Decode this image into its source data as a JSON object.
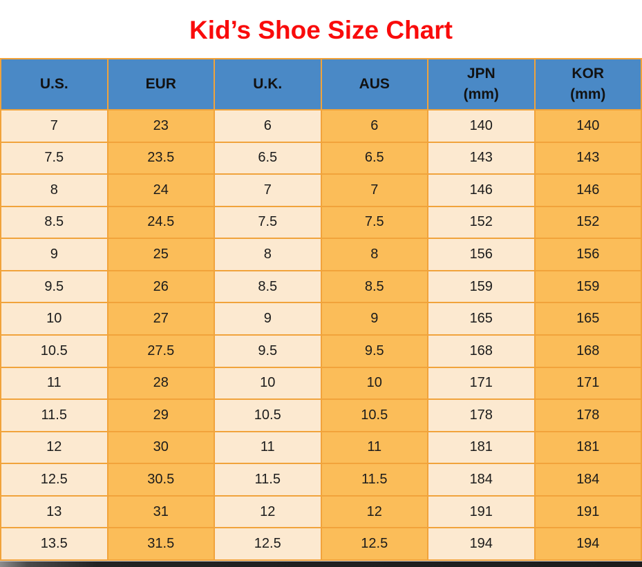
{
  "title": "Kid’s Shoe Size Chart",
  "table": {
    "columns": [
      {
        "label": "U.S.",
        "sub": ""
      },
      {
        "label": "EUR",
        "sub": ""
      },
      {
        "label": "U.K.",
        "sub": ""
      },
      {
        "label": "AUS",
        "sub": ""
      },
      {
        "label": "JPN",
        "sub": "(mm)"
      },
      {
        "label": "KOR",
        "sub": "(mm)"
      }
    ],
    "rows": [
      [
        "7",
        "23",
        "6",
        "6",
        "140",
        "140"
      ],
      [
        "7.5",
        "23.5",
        "6.5",
        "6.5",
        "143",
        "143"
      ],
      [
        "8",
        "24",
        "7",
        "7",
        "146",
        "146"
      ],
      [
        "8.5",
        "24.5",
        "7.5",
        "7.5",
        "152",
        "152"
      ],
      [
        "9",
        "25",
        "8",
        "8",
        "156",
        "156"
      ],
      [
        "9.5",
        "26",
        "8.5",
        "8.5",
        "159",
        "159"
      ],
      [
        "10",
        "27",
        "9",
        "9",
        "165",
        "165"
      ],
      [
        "10.5",
        "27.5",
        "9.5",
        "9.5",
        "168",
        "168"
      ],
      [
        "11",
        "28",
        "10",
        "10",
        "171",
        "171"
      ],
      [
        "11.5",
        "29",
        "10.5",
        "10.5",
        "178",
        "178"
      ],
      [
        "12",
        "30",
        "11",
        "11",
        "181",
        "181"
      ],
      [
        "12.5",
        "30.5",
        "11.5",
        "11.5",
        "184",
        "184"
      ],
      [
        "13",
        "31",
        "12",
        "12",
        "191",
        "191"
      ],
      [
        "13.5",
        "31.5",
        "12.5",
        "12.5",
        "194",
        "194"
      ]
    ]
  },
  "colors": {
    "title_red": "#F90B0B",
    "header_bg": "#4A89C6",
    "header_text": "#121212",
    "cell_cream": "#FCE9D0",
    "cell_orange": "#FBBD59",
    "grid_orange": "#F1A33B",
    "cell_text": "#1B1B1B",
    "page_bg": "#FFFFFF",
    "shadow_dark": "#232323"
  }
}
